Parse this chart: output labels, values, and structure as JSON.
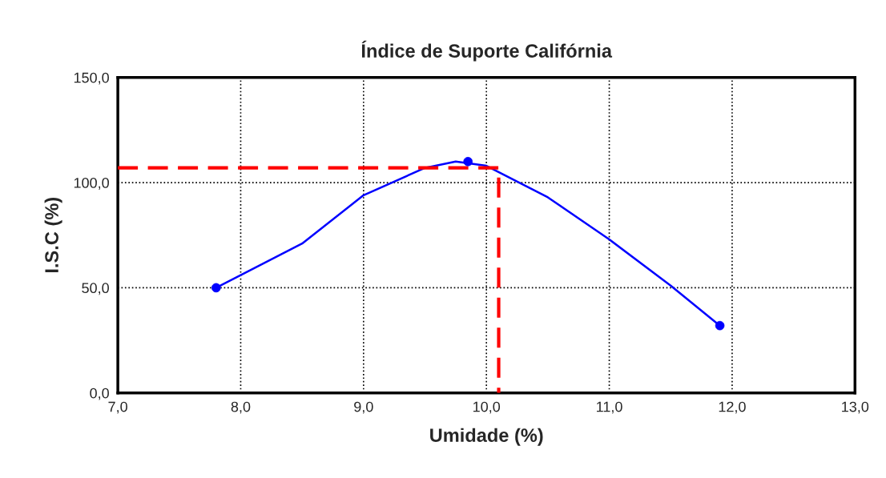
{
  "chart_data": {
    "type": "line",
    "title": "Índice de Suporte Califórnia",
    "xlabel": "Umidade (%)",
    "ylabel": "I.S.C (%)",
    "series": [
      {
        "color": "#0000ff",
        "marker": "none",
        "line_style": "solid",
        "x": [
          7.8,
          8.0,
          8.5,
          9.0,
          9.5,
          9.75,
          10.0,
          10.5,
          11.0,
          11.5,
          11.9
        ],
        "values": [
          50,
          56,
          71,
          94,
          107,
          110,
          108,
          93,
          73,
          51,
          32
        ]
      },
      {
        "type": "scatter",
        "color": "#0000ff",
        "marker": "circle",
        "x": [
          7.8,
          9.85,
          11.9
        ],
        "values": [
          50,
          110,
          32
        ]
      },
      {
        "type": "line",
        "color": "#ff0000",
        "marker": "none",
        "line_style": "dashed",
        "x": [
          7.0,
          10.1,
          10.1
        ],
        "values": [
          107,
          107,
          0
        ]
      }
    ],
    "xlim": [
      7,
      13
    ],
    "ylim": [
      0,
      150
    ],
    "xticks": [
      {
        "value": 7,
        "label": "7,0"
      },
      {
        "value": 8,
        "label": "8,0"
      },
      {
        "value": 9,
        "label": "9,0"
      },
      {
        "value": 10,
        "label": "10,0"
      },
      {
        "value": 11,
        "label": "11,0"
      },
      {
        "value": 12,
        "label": "12,0"
      },
      {
        "value": 13,
        "label": "13,0"
      }
    ],
    "yticks": [
      {
        "value": 0,
        "label": "0,0"
      },
      {
        "value": 50,
        "label": "50,0"
      },
      {
        "value": 100,
        "label": "100,0"
      },
      {
        "value": 150,
        "label": "150,0"
      }
    ],
    "grid": true,
    "legend": false
  }
}
